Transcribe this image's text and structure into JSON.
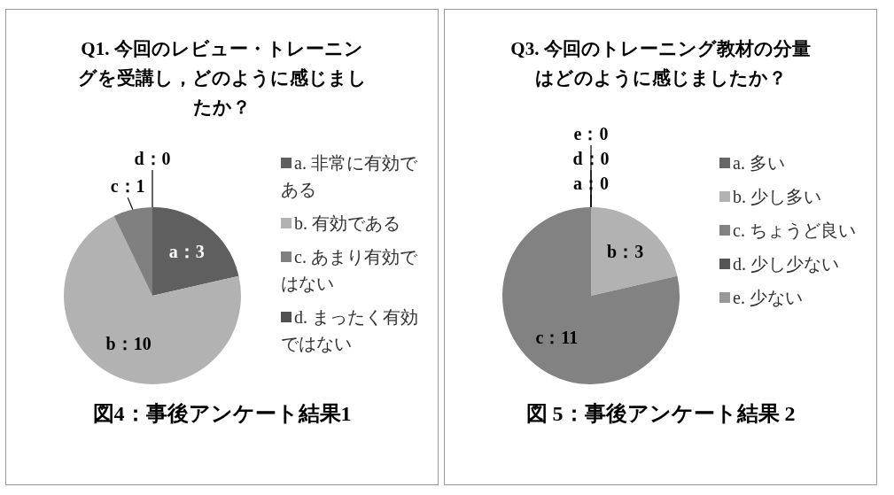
{
  "chart_data": [
    {
      "type": "pie",
      "title": "Q1. 今回のレビュー・トレーニングを受講し，どのように感じましたか？",
      "categories": [
        "a. 非常に有効である",
        "b. 有効である",
        "c. あまり有効ではない",
        "d. まったく有効ではない"
      ],
      "values": [
        3,
        10,
        1,
        0
      ],
      "colors": [
        "#5f5f5f",
        "#b2b2b2",
        "#808080",
        "#505050"
      ],
      "value_labels": [
        "a：3",
        "b：10",
        "c：1",
        "d：0"
      ],
      "legend": "right",
      "annotations": [
        "図4：事後アンケート結果1"
      ]
    },
    {
      "type": "pie",
      "title": "Q3. 今回のトレーニング教材の分量はどのように感じましたか？",
      "categories": [
        "a. 多い",
        "b. 少し多い",
        "c. ちょうど良い",
        "d. 少し少ない",
        "e. 少ない"
      ],
      "values": [
        0,
        3,
        11,
        0,
        0
      ],
      "colors": [
        "#666666",
        "#b2b2b2",
        "#828282",
        "#555555",
        "#999999"
      ],
      "value_labels": [
        "a：0",
        "b：3",
        "c：11",
        "d：0",
        "e：0"
      ],
      "legend": "right",
      "annotations": [
        "図 5：事後アンケート結果 2"
      ]
    }
  ]
}
